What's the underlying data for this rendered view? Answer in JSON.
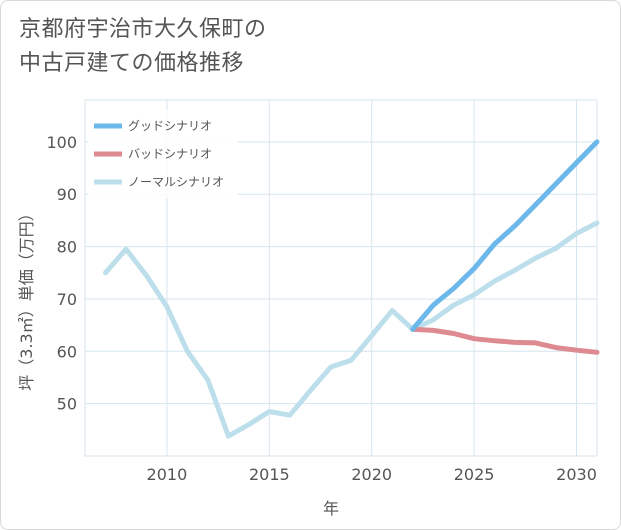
{
  "title": {
    "line1": "京都府宇治市大久保町の",
    "line2": "中古戸建ての価格推移"
  },
  "chart_data": {
    "type": "line",
    "xlabel": "年",
    "ylabel": "坪（3.3㎡）単価（万円）",
    "xlim": [
      2006,
      2031
    ],
    "ylim": [
      40,
      108
    ],
    "x_ticks": [
      2010,
      2015,
      2020,
      2025,
      2030
    ],
    "y_ticks": [
      50,
      60,
      70,
      80,
      90,
      100
    ],
    "legend_position": "top-left",
    "series": [
      {
        "name": "グッドシナリオ",
        "color": "#6cb8ea",
        "x": [
          2022,
          2023,
          2024,
          2025,
          2026,
          2027,
          2028,
          2029,
          2030,
          2031
        ],
        "values": [
          64.2,
          68.8,
          72,
          75.8,
          80.5,
          84,
          88,
          92,
          96,
          100
        ]
      },
      {
        "name": "バッドシナリオ",
        "color": "#dd8a90",
        "x": [
          2022,
          2023,
          2024,
          2025,
          2026,
          2027,
          2028,
          2029,
          2030,
          2031
        ],
        "values": [
          64.2,
          64,
          63.4,
          62.4,
          62,
          61.7,
          61.6,
          60.7,
          60.2,
          59.8
        ]
      },
      {
        "name": "ノーマルシナリオ",
        "color": "#bddfeb",
        "x": [
          2007,
          2008,
          2009,
          2010,
          2011,
          2012,
          2013,
          2014,
          2015,
          2016,
          2017,
          2018,
          2019,
          2020,
          2021,
          2022,
          2023,
          2024,
          2025,
          2026,
          2027,
          2028,
          2029,
          2030,
          2031
        ],
        "values": [
          75,
          79.5,
          74.5,
          68.5,
          60,
          54.5,
          43.8,
          46,
          48.5,
          47.8,
          52.5,
          57,
          58.3,
          63,
          67.8,
          64.2,
          66,
          68.8,
          70.8,
          73.4,
          75.5,
          77.8,
          79.7,
          82.5,
          84.5
        ]
      }
    ]
  }
}
